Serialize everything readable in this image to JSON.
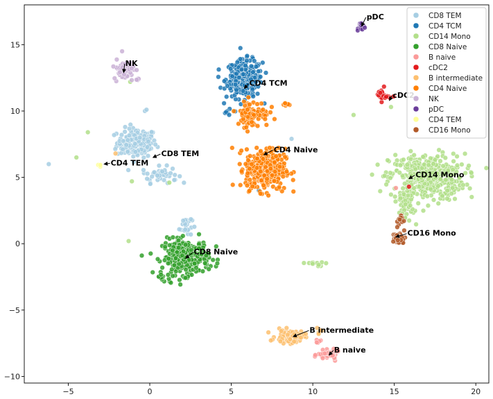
{
  "chart_data": {
    "type": "scatter",
    "title": "",
    "xlabel": "",
    "ylabel": "",
    "xlim": [
      -7.7,
      20.8
    ],
    "ylim": [
      -10.5,
      18.0
    ],
    "x_ticks": [
      -5,
      0,
      5,
      10,
      15,
      20
    ],
    "y_ticks": [
      -10,
      -5,
      0,
      5,
      10,
      15
    ],
    "grid": false,
    "legend_placement": "top-right",
    "clusters": [
      {
        "name": "CD8 TEM",
        "color": "#a6cee3",
        "label": "CD8 TEM",
        "label_x": 0.7,
        "label_y": 6.6,
        "arrow_x": 0.2,
        "arrow_y": 6.5,
        "blobs": [
          [
            -0.8,
            7.6,
            1.1,
            1.0,
            160
          ],
          [
            0.6,
            5.2,
            1.0,
            0.55,
            45
          ],
          [
            2.2,
            1.4,
            0.35,
            0.8,
            25
          ]
        ],
        "singles": [
          [
            -6.2,
            6.0
          ],
          [
            -0.3,
            10.0
          ],
          [
            -0.2,
            10.1
          ],
          [
            8.7,
            7.9
          ],
          [
            1.5,
            4.8
          ]
        ]
      },
      {
        "name": "CD4 TCM",
        "color": "#1f78b4",
        "label": "CD4 TCM",
        "label_x": 6.1,
        "label_y": 11.9,
        "arrow_x": 5.8,
        "arrow_y": 11.7,
        "blobs": [
          [
            5.8,
            12.4,
            1.0,
            1.3,
            260
          ],
          [
            4.8,
            9.9,
            0.3,
            0.2,
            6
          ]
        ],
        "singles": [
          [
            6.7,
            4.0
          ]
        ]
      },
      {
        "name": "CD14 Mono",
        "color": "#b2df8a",
        "label": "CD14 Mono",
        "label_x": 16.3,
        "label_y": 5.0,
        "arrow_x": 15.9,
        "arrow_y": 4.9,
        "blobs": [
          [
            17.0,
            5.0,
            2.1,
            1.6,
            420
          ],
          [
            15.8,
            2.9,
            0.4,
            0.8,
            40
          ],
          [
            10.2,
            -1.5,
            0.7,
            0.2,
            12
          ]
        ],
        "singles": [
          [
            -3.8,
            8.4
          ],
          [
            -4.5,
            6.5
          ],
          [
            -1.3,
            0.2
          ],
          [
            -1.1,
            4.7
          ],
          [
            1.2,
            4.6
          ],
          [
            12.5,
            9.7
          ],
          [
            14.8,
            10.3
          ],
          [
            -1.2,
            12.2
          ]
        ]
      },
      {
        "name": "CD8 Naive",
        "color": "#33a02c",
        "label": "CD8 Naive",
        "label_x": 2.7,
        "label_y": -0.8,
        "arrow_x": 2.2,
        "arrow_y": -1.1,
        "blobs": [
          [
            2.2,
            -1.0,
            1.3,
            1.2,
            280
          ],
          [
            0.8,
            -2.5,
            0.4,
            0.25,
            10
          ]
        ],
        "singles": []
      },
      {
        "name": "B naive",
        "color": "#fb9a99",
        "label": "B naive",
        "label_x": 11.3,
        "label_y": -8.2,
        "arrow_x": 11.0,
        "arrow_y": -8.4,
        "blobs": [
          [
            11.0,
            -8.4,
            0.6,
            0.3,
            50
          ],
          [
            10.3,
            -7.4,
            0.2,
            0.2,
            6
          ]
        ],
        "singles": [
          [
            15.1,
            4.2
          ]
        ]
      },
      {
        "name": "cDC2",
        "color": "#e31a1c",
        "label": "cDC2",
        "label_x": 14.9,
        "label_y": 11.0,
        "arrow_x": 14.7,
        "arrow_y": 10.8,
        "blobs": [
          [
            14.3,
            11.2,
            0.4,
            0.45,
            20
          ]
        ],
        "singles": [
          [
            15.9,
            4.3
          ]
        ]
      },
      {
        "name": "B intermediate",
        "color": "#fdbf6f",
        "label": "B intermediate",
        "label_x": 9.8,
        "label_y": -6.7,
        "arrow_x": 8.8,
        "arrow_y": -7.0,
        "blobs": [
          [
            8.6,
            -7.0,
            0.8,
            0.45,
            90
          ],
          [
            10.4,
            -6.6,
            0.15,
            0.25,
            6
          ]
        ],
        "singles": [
          [
            -2.1,
            6.8
          ]
        ]
      },
      {
        "name": "CD4 Naive",
        "color": "#ff7f00",
        "label": "CD4 Naive",
        "label_x": 7.6,
        "label_y": 6.9,
        "arrow_x": 7.0,
        "arrow_y": 6.7,
        "blobs": [
          [
            7.1,
            5.6,
            1.1,
            1.4,
            380
          ],
          [
            6.3,
            9.8,
            0.9,
            0.9,
            90
          ],
          [
            8.3,
            10.5,
            0.4,
            0.1,
            8
          ]
        ],
        "singles": []
      },
      {
        "name": "NK",
        "color": "#cab2d6",
        "label": "NK",
        "label_x": -1.5,
        "label_y": 13.4,
        "arrow_x": -1.6,
        "arrow_y": 12.9,
        "blobs": [
          [
            -1.6,
            13.1,
            0.55,
            0.65,
            60
          ],
          [
            -0.8,
            12.4,
            0.2,
            0.1,
            6
          ]
        ],
        "singles": [
          [
            -1.7,
            14.5
          ]
        ]
      },
      {
        "name": "pDC",
        "color": "#6a3d9a",
        "label": "pDC",
        "label_x": 13.3,
        "label_y": 16.9,
        "arrow_x": 13.0,
        "arrow_y": 16.4,
        "blobs": [
          [
            12.9,
            16.4,
            0.25,
            0.2,
            14
          ]
        ],
        "singles": []
      },
      {
        "name": "CD4 TEM",
        "color": "#ffff99",
        "label": "CD4 TEM",
        "label_x": -2.4,
        "label_y": 5.9,
        "arrow_x": -2.8,
        "arrow_y": 6.0,
        "blobs": [
          [
            -3.0,
            5.85,
            0.12,
            0.1,
            4
          ]
        ],
        "singles": []
      },
      {
        "name": "CD16 Mono",
        "color": "#b15928",
        "label": "CD16 Mono",
        "label_x": 15.8,
        "label_y": 0.6,
        "arrow_x": 15.1,
        "arrow_y": 0.5,
        "blobs": [
          [
            15.3,
            0.4,
            0.35,
            0.4,
            45
          ],
          [
            15.4,
            1.7,
            0.2,
            0.5,
            12
          ]
        ],
        "singles": []
      }
    ]
  }
}
